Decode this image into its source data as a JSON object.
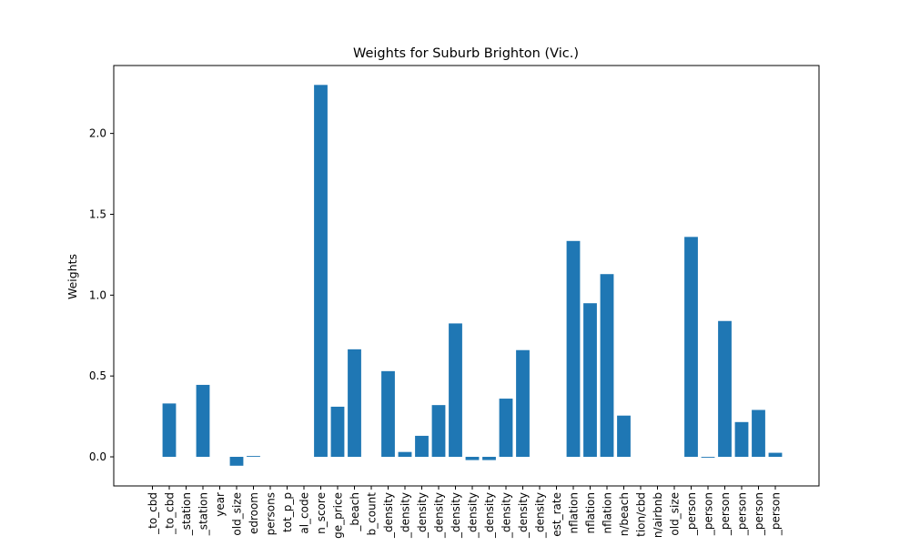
{
  "chart_data": {
    "type": "bar",
    "title": "Weights for Suburb Brighton (Vic.)",
    "xlabel": "",
    "ylabel": "Weights",
    "ylim": [
      -0.18,
      2.42
    ],
    "yticks": [
      0.0,
      0.5,
      1.0,
      1.5,
      2.0
    ],
    "ytick_labels": [
      "0.0",
      "0.5",
      "1.0",
      "1.5",
      "2.0"
    ],
    "grid": false,
    "bar_color": "#1f77b4",
    "categories": [
      "_to_cbd",
      "_to_cbd",
      "_station",
      "_station",
      "year",
      "old_size",
      "edroom",
      "persons",
      "tot_p_p",
      "al_code",
      "n_score",
      "ge_price",
      "_beach",
      "b_count",
      "_density",
      "_density",
      "_density",
      "_density",
      "_density",
      "_density",
      "_density",
      "_density",
      "_density",
      "_density",
      "est_rate",
      "nflation",
      "nflation",
      "nflation",
      "n/beach",
      "tion/cbd",
      "n/airbnb",
      "old_size",
      "_person",
      "_person",
      "_person",
      "_person",
      "_person",
      "_person"
    ],
    "values": [
      0.0,
      0.33,
      0.0,
      0.445,
      0.0,
      -0.055,
      0.005,
      0.0,
      0.0,
      0.0,
      2.3,
      0.31,
      0.665,
      0.0,
      0.53,
      0.03,
      0.13,
      0.32,
      0.825,
      -0.02,
      -0.02,
      0.36,
      0.66,
      0.0,
      0.0,
      1.335,
      0.95,
      1.13,
      0.255,
      0.0,
      0.0,
      0.0,
      1.36,
      -0.005,
      0.84,
      0.215,
      0.29,
      0.025
    ]
  }
}
